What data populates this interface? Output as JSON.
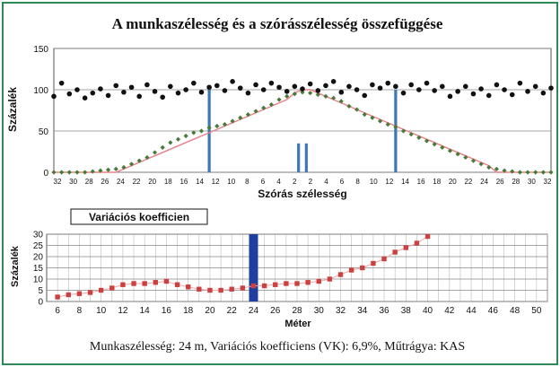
{
  "figure": {
    "title": "A munkaszélesség és a szórásszélesség összefüggése",
    "caption": "Munkaszélesség: 24 m, Variációs koefficiens (VK): 6,9%, Műtrágya: KAS"
  },
  "colors": {
    "border": "#2e8b57",
    "black_points": "#111111",
    "green_points": "#4a7a3a",
    "red_line": "#e8808a",
    "blue_bar": "#3a78b8",
    "dark_blue_bar": "#1f3f9e",
    "square_points": "#cc4040",
    "square_line": "#f0a8a8"
  },
  "chart_data": [
    {
      "type": "scatter",
      "title": "",
      "xlabel": "Szórás szélesség",
      "ylabel": "Százalék",
      "ylim": [
        0,
        150
      ],
      "yticks": [
        "0",
        "50",
        "100",
        "150"
      ],
      "xticks": [
        "32",
        "30",
        "28",
        "26",
        "24",
        "22",
        "20",
        "18",
        "16",
        "14",
        "12",
        "10",
        "8",
        "6",
        "4",
        "2",
        "2",
        "4",
        "6",
        "8",
        "10",
        "12",
        "14",
        "16",
        "18",
        "20",
        "22",
        "24",
        "26",
        "28",
        "30",
        "32"
      ],
      "x": [
        -32,
        -31,
        -30,
        -29,
        -28,
        -27,
        -26,
        -25,
        -24,
        -23,
        -22,
        -21,
        -20,
        -19,
        -18,
        -17,
        -16,
        -15,
        -14,
        -13,
        -12,
        -11,
        -10,
        -9,
        -8,
        -7,
        -6,
        -5,
        -4,
        -3,
        -2,
        -1,
        0,
        1,
        2,
        3,
        4,
        5,
        6,
        7,
        8,
        9,
        10,
        11,
        12,
        13,
        14,
        15,
        16,
        17,
        18,
        19,
        20,
        21,
        22,
        23,
        24,
        25,
        26,
        27,
        28,
        29,
        30,
        31,
        32
      ],
      "series": [
        {
          "values": [
            92,
            108,
            95,
            100,
            90,
            96,
            101,
            93,
            105,
            97,
            103,
            92,
            106,
            98,
            91,
            104,
            96,
            100,
            108,
            97,
            103,
            105,
            99,
            110,
            102,
            96,
            106,
            100,
            108,
            103,
            98,
            104,
            101,
            107,
            99,
            105,
            110,
            97,
            104,
            100,
            93,
            106,
            102,
            108,
            104,
            96,
            106,
            100,
            108,
            99,
            104,
            92,
            98,
            104,
            95,
            101,
            93,
            106,
            100,
            94,
            108,
            98,
            104,
            96,
            102
          ]
        },
        {
          "values": [
            0,
            0,
            0,
            0,
            0,
            1,
            2,
            3,
            4,
            6,
            10,
            14,
            18,
            24,
            30,
            36,
            40,
            44,
            48,
            50,
            54,
            56,
            58,
            62,
            66,
            70,
            74,
            78,
            82,
            88,
            92,
            95,
            97,
            96,
            94,
            92,
            90,
            86,
            80,
            76,
            70,
            66,
            62,
            58,
            55,
            50,
            46,
            42,
            38,
            34,
            30,
            26,
            22,
            18,
            14,
            10,
            6,
            4,
            2,
            1,
            0,
            0,
            0,
            0,
            0
          ]
        },
        {
          "values": [
            0,
            0,
            0,
            0,
            0,
            0,
            0,
            0,
            0,
            8,
            16,
            24,
            32,
            40,
            48,
            56,
            64,
            72,
            80,
            88,
            96,
            100,
            100,
            96,
            88,
            80,
            72,
            64,
            56,
            48,
            40,
            32,
            24,
            16,
            8,
            0,
            0,
            0,
            0,
            0,
            0,
            0
          ],
          "x": [
            -32,
            -31,
            -30,
            -29,
            -28,
            -27,
            -26,
            -25,
            -24,
            -22,
            -20,
            -18,
            -16,
            -14,
            -12,
            -10,
            -8,
            -6,
            -4,
            -2,
            -1,
            0,
            1,
            2,
            4,
            6,
            8,
            10,
            12,
            14,
            16,
            18,
            20,
            22,
            24,
            25,
            26,
            27,
            28,
            29,
            30,
            32
          ]
        },
        {
          "bars": [
            {
              "x": -12,
              "value": 100
            },
            {
              "x": 12,
              "value": 100
            },
            {
              "x": -0.5,
              "value": 35
            },
            {
              "x": 0.5,
              "value": 35
            }
          ]
        }
      ]
    },
    {
      "type": "line",
      "title": "Variációs koefficien",
      "xlabel": "Méter",
      "ylabel": "Százalék",
      "ylim": [
        0,
        30
      ],
      "yticks": [
        "0",
        "5",
        "10",
        "15",
        "20",
        "25",
        "30"
      ],
      "xticks": [
        "6",
        "8",
        "10",
        "12",
        "14",
        "16",
        "18",
        "20",
        "22",
        "24",
        "26",
        "28",
        "30",
        "32",
        "34",
        "36",
        "38",
        "40",
        "42",
        "44",
        "46",
        "48",
        "50"
      ],
      "x": [
        6,
        7,
        8,
        9,
        10,
        11,
        12,
        13,
        14,
        15,
        16,
        17,
        18,
        19,
        20,
        21,
        22,
        23,
        24,
        25,
        26,
        27,
        28,
        29,
        30,
        31,
        32,
        33,
        34,
        35,
        36,
        37,
        38,
        39,
        40
      ],
      "values": [
        2,
        3,
        3.5,
        4,
        5,
        6,
        7.5,
        8,
        8,
        8.5,
        9,
        7.5,
        6.5,
        5.5,
        5,
        5,
        5.5,
        6,
        7,
        7,
        7.5,
        8,
        8,
        8.5,
        9,
        10,
        12,
        14,
        15,
        17,
        19,
        22,
        24,
        26,
        29
      ],
      "highlight_x": 24
    }
  ]
}
